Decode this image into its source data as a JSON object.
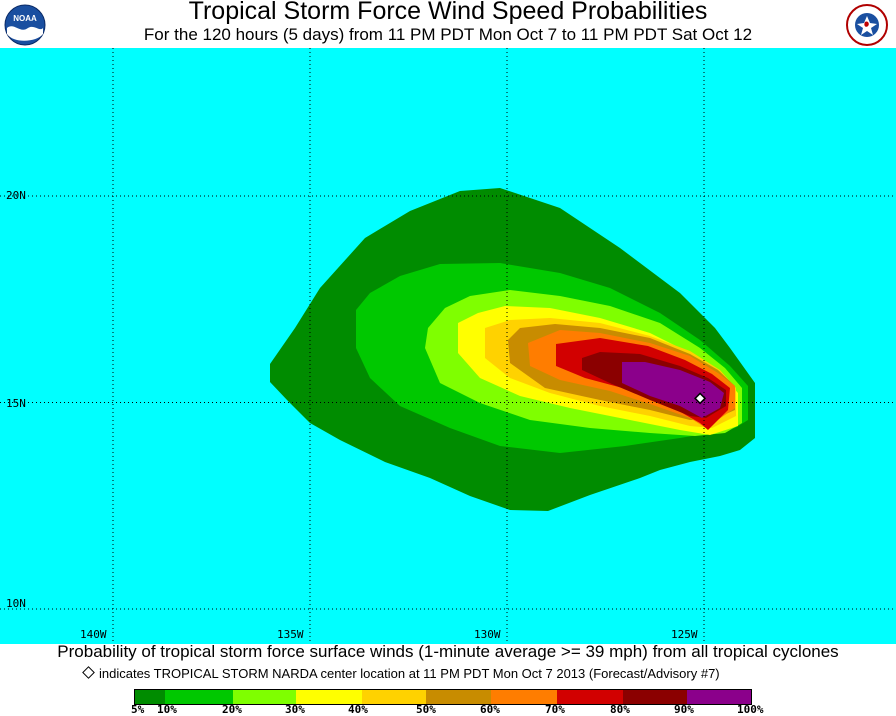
{
  "header": {
    "title": "Tropical Storm Force Wind Speed Probabilities",
    "subtitle": "For the 120 hours (5 days) from 11 PM PDT Mon Oct 7 to 11 PM PDT Sat Oct 12"
  },
  "logos": {
    "left": "NOAA",
    "right_text": "NATIONAL WEATHER SERVICE"
  },
  "map": {
    "background_color": "#00ffff",
    "lat_labels": [
      "20N",
      "15N",
      "10N"
    ],
    "lon_labels": [
      "140W",
      "135W",
      "130W",
      "125W"
    ],
    "storm_center": {
      "lat": 15.1,
      "lon": -125.1
    }
  },
  "footer": {
    "probability_note": "Probability of tropical storm force surface winds (1-minute average >= 39 mph) from all tropical cyclones",
    "center_note": "indicates TROPICAL STORM NARDA center location at 11 PM PDT Mon Oct 7 2013 (Forecast/Advisory #7)"
  },
  "legend": {
    "labels": [
      "5%",
      "10%",
      "20%",
      "30%",
      "40%",
      "50%",
      "60%",
      "70%",
      "80%",
      "90%",
      "100%"
    ],
    "colors": [
      "#008c00",
      "#00c800",
      "#7fff00",
      "#ffff00",
      "#ffd200",
      "#c88c00",
      "#ff7d00",
      "#d20000",
      "#8b0000",
      "#8b008b"
    ]
  }
}
